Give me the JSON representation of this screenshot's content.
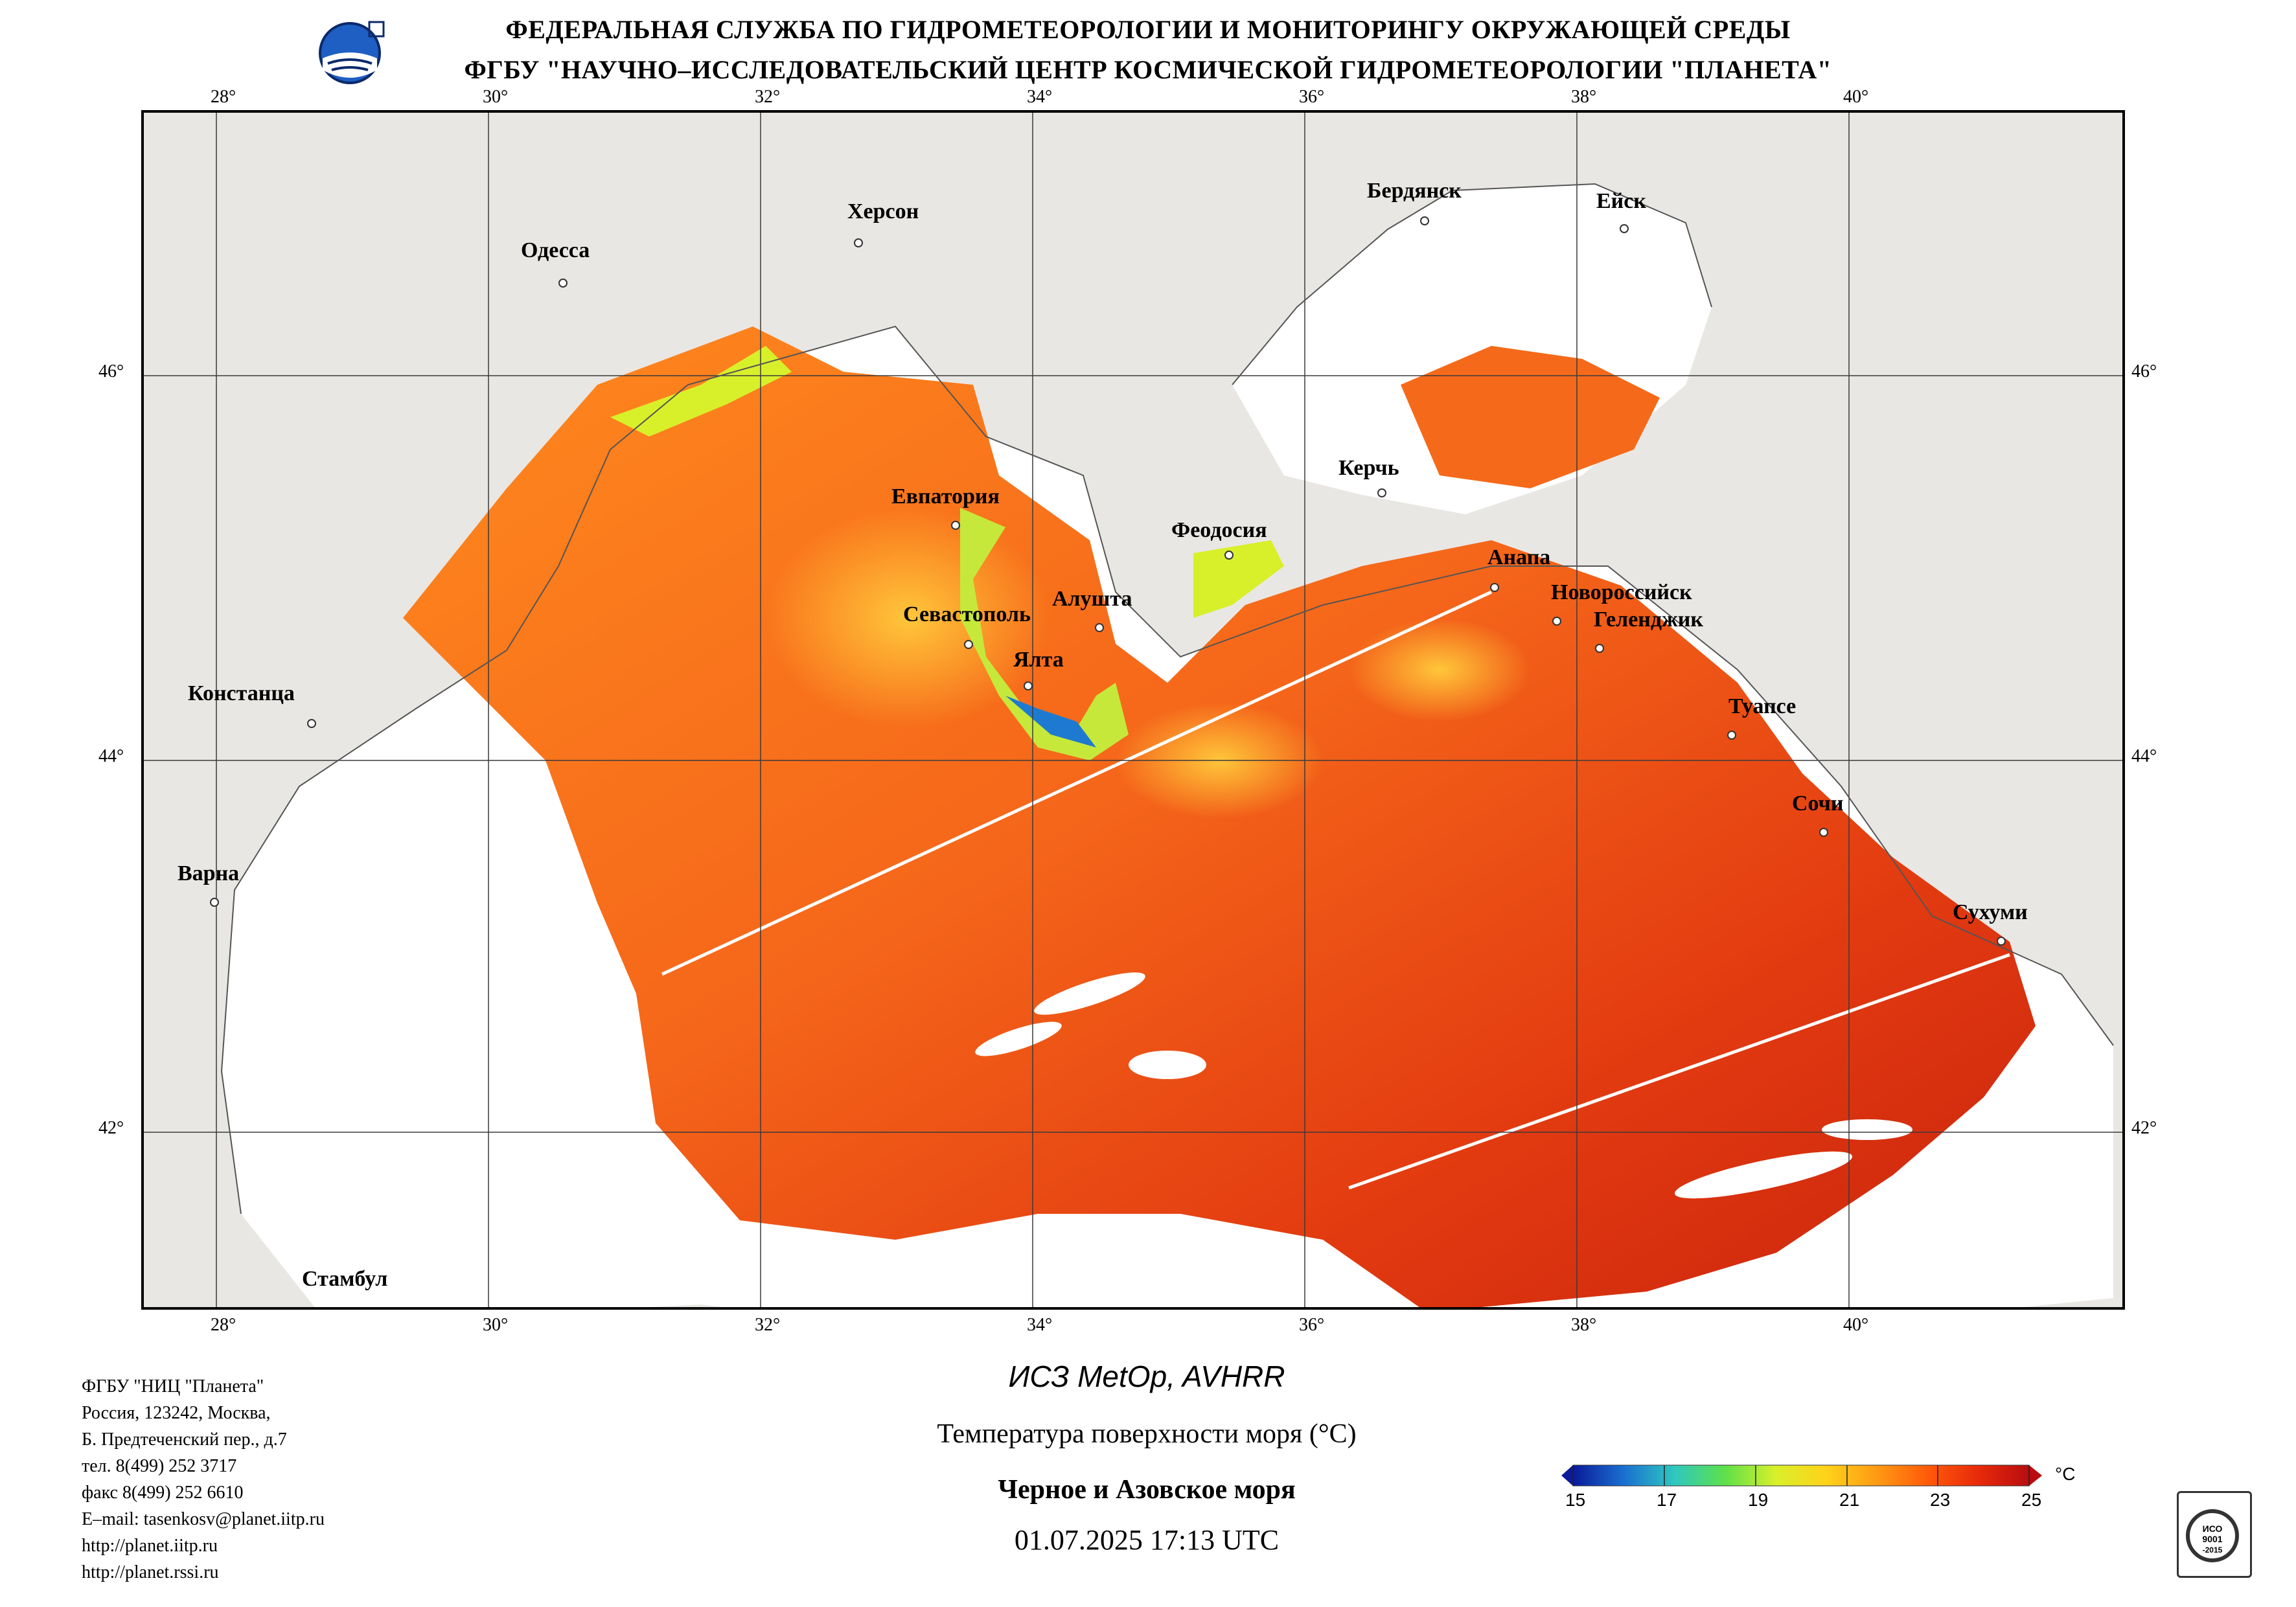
{
  "header": {
    "line1": "ФЕДЕРАЛЬНАЯ СЛУЖБА ПО ГИДРОМЕТЕОРОЛОГИИ И МОНИТОРИНГУ ОКРУЖАЮЩЕЙ СРЕДЫ",
    "line2": "ФГБУ \"НАУЧНО–ИССЛЕДОВАТЕЛЬСКИЙ ЦЕНТР КОСМИЧЕСКОЙ ГИДРОМЕТЕОРОЛОГИИ \"ПЛАНЕТА\""
  },
  "map": {
    "lon_labels": [
      "28°",
      "30°",
      "32°",
      "34°",
      "36°",
      "38°",
      "40°"
    ],
    "lat_labels": [
      "46°",
      "44°",
      "42°"
    ],
    "cities": [
      {
        "name": "Херсон"
      },
      {
        "name": "Одесса"
      },
      {
        "name": "Бердянск"
      },
      {
        "name": "Ейск"
      },
      {
        "name": "Евпатория"
      },
      {
        "name": "Керчь"
      },
      {
        "name": "Феодосия"
      },
      {
        "name": "Анапа"
      },
      {
        "name": "Новороссийск"
      },
      {
        "name": "Геленджик"
      },
      {
        "name": "Алушта"
      },
      {
        "name": "Севастополь"
      },
      {
        "name": "Ялта"
      },
      {
        "name": "Констанца"
      },
      {
        "name": "Туапсе"
      },
      {
        "name": "Сочи"
      },
      {
        "name": "Варна"
      },
      {
        "name": "Сухуми"
      },
      {
        "name": "Стамбул"
      }
    ]
  },
  "info": {
    "lines": [
      "ФГБУ \"НИЦ \"Планета\"",
      "Россия, 123242, Москва,",
      "Б. Предтеченский пер., д.7",
      "тел. 8(499) 252 3717",
      "факс 8(499) 252 6610",
      "E–mail: tasenkosv@planet.iitp.ru",
      "http://planet.iitp.ru",
      "http://planet.rssi.ru"
    ]
  },
  "caption": {
    "satellite": "ИСЗ MetOp, AVHRR",
    "parameter": "Температура поверхности моря (°C)",
    "region": "Черное и Азовское моря",
    "datetime": "01.07.2025 17:13 UTC"
  },
  "colorbar": {
    "unit": "°C",
    "ticks": [
      "15",
      "17",
      "19",
      "21",
      "23",
      "25"
    ],
    "colors": [
      "#0a1a9a",
      "#1a6fd0",
      "#2ec8c0",
      "#5ee04a",
      "#d8f02a",
      "#ffd21a",
      "#ff9a14",
      "#ff5a0a",
      "#e82a0a",
      "#b80d10"
    ]
  },
  "cert_text": "ИСО 9001 -2015"
}
